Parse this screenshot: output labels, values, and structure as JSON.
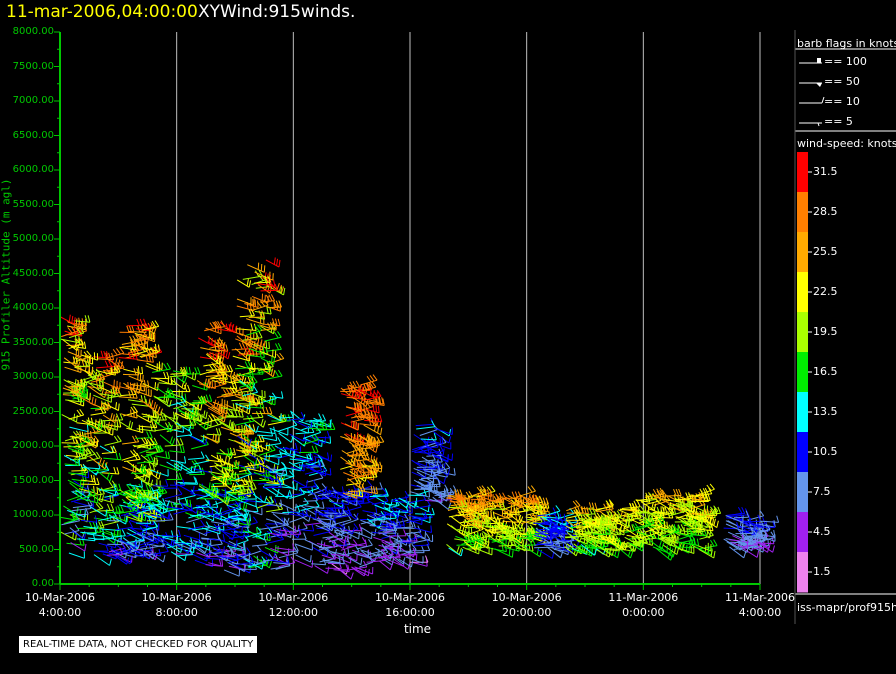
{
  "header": {
    "date_time": "11-mar-2006,04:00:00",
    "title": "XYWind:915winds."
  },
  "notice": "REAL-TIME DATA, NOT CHECKED FOR QUALITY",
  "source_label": "iss-mapr/prof915h",
  "colors": {
    "axis": "#00c800",
    "grid": "#bfbfbf",
    "title_date": "#ffff00",
    "background": "#000000"
  },
  "chart_data": {
    "type": "scatter",
    "title": "XYWind:915winds.",
    "xlabel": "time",
    "ylabel": "915 Profiler Altitude (m agl)",
    "xlim": [
      "2006-03-10 04:00",
      "2006-03-11 04:00"
    ],
    "ylim": [
      0,
      8000
    ],
    "grid": "vertical",
    "y_ticks": [
      "0.00",
      "500.00",
      "1000.00",
      "1500.00",
      "2000.00",
      "2500.00",
      "3000.00",
      "3500.00",
      "4000.00",
      "4500.00",
      "5000.00",
      "5500.00",
      "6000.00",
      "6500.00",
      "7000.00",
      "7500.00",
      "8000.00"
    ],
    "x_ticks": [
      {
        "date": "10-Mar-2006",
        "time": "4:00:00"
      },
      {
        "date": "10-Mar-2006",
        "time": "8:00:00"
      },
      {
        "date": "10-Mar-2006",
        "time": "12:00:00"
      },
      {
        "date": "10-Mar-2006",
        "time": "16:00:00"
      },
      {
        "date": "10-Mar-2006",
        "time": "20:00:00"
      },
      {
        "date": "11-Mar-2006",
        "time": "0:00:00"
      },
      {
        "date": "11-Mar-2006",
        "time": "4:00:00"
      }
    ],
    "legend": {
      "flags_title": "barb flags in knots",
      "flags": [
        "== 100",
        "== 50",
        "== 10",
        "== 5"
      ],
      "speed_title": "wind-speed: knots",
      "speed_levels": [
        {
          "value": "31.5",
          "color": "#ff0000"
        },
        {
          "value": "28.5",
          "color": "#ff7f00"
        },
        {
          "value": "25.5",
          "color": "#ffaa00"
        },
        {
          "value": "22.5",
          "color": "#ffff00"
        },
        {
          "value": "19.5",
          "color": "#aaff00"
        },
        {
          "value": "16.5",
          "color": "#00ee00"
        },
        {
          "value": "13.5",
          "color": "#00ffff"
        },
        {
          "value": "10.5",
          "color": "#0000ff"
        },
        {
          "value": "7.5",
          "color": "#6495ed"
        },
        {
          "value": "4.5",
          "color": "#a020f0"
        },
        {
          "value": "1.5",
          "color": "#ee82ee"
        }
      ]
    },
    "clusters": [
      {
        "hour": 0.0,
        "hour_end": 0.5,
        "alt": [
          400,
          3900
        ],
        "speed": [
          4,
          33
        ]
      },
      {
        "hour": 0.5,
        "hour_end": 1.6,
        "alt": [
          400,
          3400
        ],
        "speed": [
          6,
          33
        ]
      },
      {
        "hour": 1.6,
        "hour_end": 3.1,
        "alt": [
          400,
          1400
        ],
        "speed": [
          4,
          19
        ]
      },
      {
        "hour": 2.0,
        "hour_end": 3.0,
        "alt": [
          900,
          3800
        ],
        "speed": [
          12,
          33
        ]
      },
      {
        "hour": 3.1,
        "hour_end": 4.6,
        "alt": [
          400,
          3100
        ],
        "speed": [
          5,
          24
        ]
      },
      {
        "hour": 4.6,
        "hour_end": 6.0,
        "alt": [
          200,
          1400
        ],
        "speed": [
          3,
          19
        ]
      },
      {
        "hour": 4.7,
        "hour_end": 6.2,
        "alt": [
          1200,
          3800
        ],
        "speed": [
          14,
          33
        ]
      },
      {
        "hour": 6.0,
        "hour_end": 7.2,
        "alt": [
          200,
          4700
        ],
        "speed": [
          4,
          33
        ]
      },
      {
        "hour": 6.9,
        "hour_end": 8.8,
        "alt": [
          200,
          2500
        ],
        "speed": [
          3,
          18
        ]
      },
      {
        "hour": 8.8,
        "hour_end": 10.4,
        "alt": [
          200,
          1400
        ],
        "speed": [
          2,
          14
        ]
      },
      {
        "hour": 9.6,
        "hour_end": 10.5,
        "alt": [
          1300,
          2900
        ],
        "speed": [
          22,
          33
        ]
      },
      {
        "hour": 10.5,
        "hour_end": 12.2,
        "alt": [
          300,
          1300
        ],
        "speed": [
          2,
          16
        ]
      },
      {
        "hour": 12.0,
        "hour_end": 13.0,
        "alt": [
          1200,
          2300
        ],
        "speed": [
          5,
          13
        ]
      },
      {
        "hour": 13.2,
        "hour_end": 16.2,
        "alt": [
          500,
          1300
        ],
        "speed": [
          14,
          30
        ]
      },
      {
        "hour": 16.2,
        "hour_end": 17.2,
        "alt": [
          500,
          1000
        ],
        "speed": [
          6,
          14
        ]
      },
      {
        "hour": 17.3,
        "hour_end": 19.6,
        "alt": [
          500,
          1100
        ],
        "speed": [
          14,
          27
        ]
      },
      {
        "hour": 19.7,
        "hour_end": 22.0,
        "alt": [
          500,
          1300
        ],
        "speed": [
          14,
          27
        ]
      },
      {
        "hour": 22.7,
        "hour_end": 24.0,
        "alt": [
          500,
          1000
        ],
        "speed": [
          4,
          12
        ]
      }
    ]
  }
}
